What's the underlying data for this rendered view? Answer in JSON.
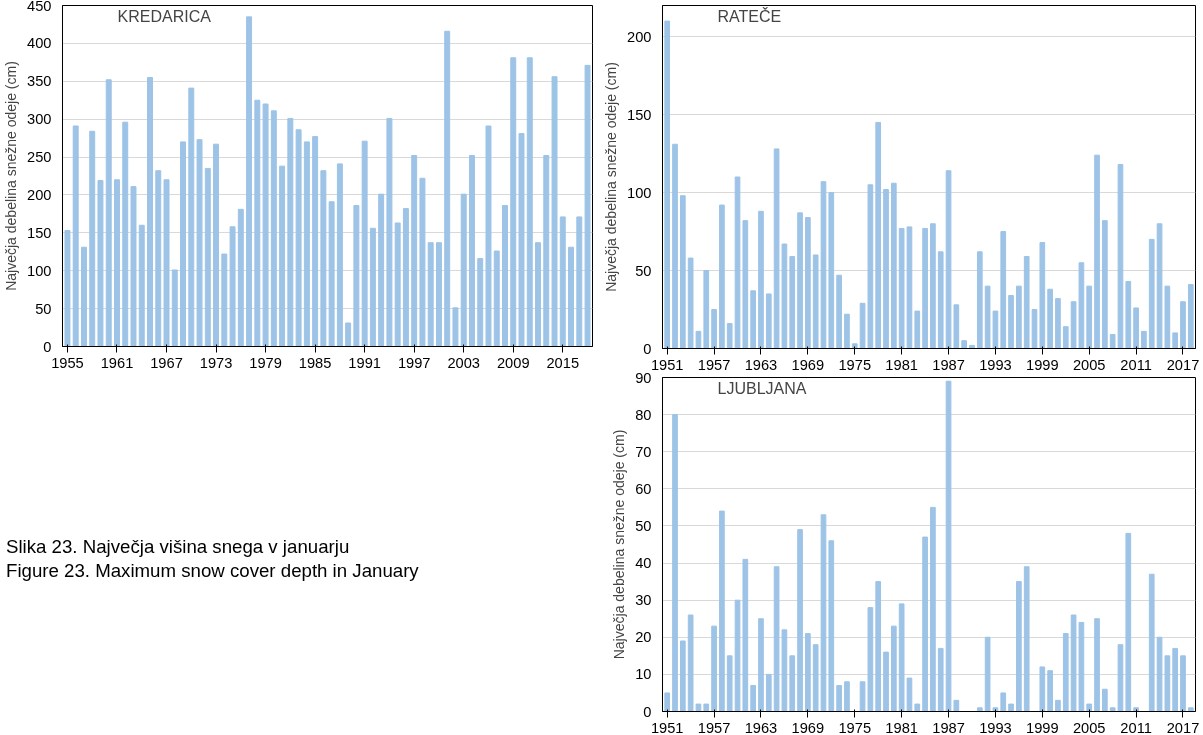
{
  "chart_data": [
    {
      "type": "bar",
      "title": "KREDARICA",
      "ylabel": "Največja debelina snežne odeje (cm)",
      "color": "#9dc3e6",
      "x": [
        1955,
        1956,
        1957,
        1958,
        1959,
        1960,
        1961,
        1962,
        1963,
        1964,
        1965,
        1966,
        1967,
        1968,
        1969,
        1970,
        1971,
        1972,
        1973,
        1974,
        1975,
        1976,
        1977,
        1978,
        1979,
        1980,
        1981,
        1982,
        1983,
        1984,
        1985,
        1986,
        1987,
        1988,
        1989,
        1990,
        1991,
        1992,
        1993,
        1994,
        1995,
        1996,
        1997,
        1998,
        1999,
        2000,
        2001,
        2002,
        2003,
        2004,
        2005,
        2006,
        2007,
        2008,
        2009,
        2010,
        2011,
        2012,
        2013,
        2014,
        2015,
        2016,
        2017,
        2018
      ],
      "values": [
        153,
        291,
        131,
        284,
        219,
        352,
        220,
        296,
        211,
        160,
        355,
        232,
        220,
        101,
        270,
        341,
        273,
        235,
        267,
        122,
        158,
        181,
        435,
        325,
        320,
        311,
        238,
        301,
        286,
        270,
        277,
        232,
        191,
        241,
        31,
        186,
        271,
        156,
        201,
        301,
        163,
        182,
        252,
        222,
        137,
        137,
        416,
        51,
        201,
        252,
        116,
        291,
        126,
        186,
        381,
        281,
        381,
        137,
        252,
        356,
        171,
        131,
        171,
        371
      ],
      "xlim": [
        1954.4,
        2018.6
      ],
      "xticks": [
        1955,
        1961,
        1967,
        1973,
        1979,
        1985,
        1991,
        1997,
        2003,
        2009,
        2015
      ],
      "ylim": [
        0,
        450
      ],
      "yticks": [
        0,
        50,
        100,
        150,
        200,
        250,
        300,
        350,
        400,
        450
      ],
      "grid": "y",
      "annotations": [
        "Slika 23. Največja višina snega v januarju",
        "Figure 23. Maximum snow cover depth in January"
      ]
    },
    {
      "type": "bar",
      "title": "RATEČE",
      "ylabel": "Največja debelina snežne odeje (cm)",
      "color": "#9dc3e6",
      "x": [
        1951,
        1952,
        1953,
        1954,
        1955,
        1956,
        1957,
        1958,
        1959,
        1960,
        1961,
        1962,
        1963,
        1964,
        1965,
        1966,
        1967,
        1968,
        1969,
        1970,
        1971,
        1972,
        1973,
        1974,
        1975,
        1976,
        1977,
        1978,
        1979,
        1980,
        1981,
        1982,
        1983,
        1984,
        1985,
        1986,
        1987,
        1988,
        1989,
        1990,
        1991,
        1992,
        1993,
        1994,
        1995,
        1996,
        1997,
        1998,
        1999,
        2000,
        2001,
        2002,
        2003,
        2004,
        2005,
        2006,
        2007,
        2008,
        2009,
        2010,
        2011,
        2012,
        2013,
        2014,
        2015,
        2016,
        2017,
        2018
      ],
      "values": [
        210,
        131,
        98,
        58,
        11,
        50,
        25,
        92,
        16,
        110,
        82,
        37,
        88,
        35,
        128,
        67,
        59,
        87,
        84,
        60,
        107,
        100,
        47,
        22,
        3,
        29,
        105,
        145,
        102,
        106,
        77,
        78,
        24,
        77,
        80,
        62,
        114,
        28,
        5,
        2,
        62,
        40,
        24,
        75,
        34,
        40,
        59,
        25,
        68,
        38,
        32,
        14,
        30,
        55,
        40,
        124,
        82,
        9,
        118,
        43,
        26,
        11,
        70,
        80,
        40,
        10,
        30,
        41
      ],
      "xlim": [
        1950.4,
        2018.6
      ],
      "xticks": [
        1951,
        1957,
        1963,
        1969,
        1975,
        1981,
        1987,
        1993,
        1999,
        2005,
        2011,
        2017
      ],
      "ylim": [
        0,
        220
      ],
      "yticks": [
        0,
        50,
        100,
        150,
        200
      ],
      "grid": "y"
    },
    {
      "type": "bar",
      "title": "LJUBLJANA",
      "ylabel": "Največja debelina snežne odeje (cm)",
      "color": "#9dc3e6",
      "x": [
        1951,
        1952,
        1953,
        1954,
        1955,
        1956,
        1957,
        1958,
        1959,
        1960,
        1961,
        1962,
        1963,
        1964,
        1965,
        1966,
        1967,
        1968,
        1969,
        1970,
        1971,
        1972,
        1973,
        1974,
        1975,
        1976,
        1977,
        1978,
        1979,
        1980,
        1981,
        1982,
        1983,
        1984,
        1985,
        1986,
        1987,
        1988,
        1989,
        1990,
        1991,
        1992,
        1993,
        1994,
        1995,
        1996,
        1997,
        1998,
        1999,
        2000,
        2001,
        2002,
        2003,
        2004,
        2005,
        2006,
        2007,
        2008,
        2009,
        2010,
        2011,
        2012,
        2013,
        2014,
        2015,
        2016,
        2017,
        2018
      ],
      "values": [
        5,
        80,
        19,
        26,
        2,
        2,
        23,
        54,
        15,
        30,
        41,
        7,
        25,
        10,
        39,
        22,
        15,
        49,
        21,
        18,
        53,
        46,
        7,
        8,
        0,
        8,
        28,
        35,
        16,
        23,
        29,
        9,
        2,
        47,
        55,
        17,
        89,
        3,
        0,
        0,
        1,
        20,
        1,
        5,
        2,
        35,
        39,
        0,
        12,
        11,
        3,
        21,
        26,
        24,
        2,
        25,
        6,
        1,
        18,
        48,
        1,
        0,
        37,
        20,
        15,
        17,
        15,
        1
      ],
      "xlim": [
        1950.4,
        2018.6
      ],
      "xticks": [
        1951,
        1957,
        1963,
        1969,
        1975,
        1981,
        1987,
        1993,
        1999,
        2005,
        2011,
        2017
      ],
      "ylim": [
        0,
        90
      ],
      "yticks": [
        0,
        10,
        20,
        30,
        40,
        50,
        60,
        70,
        80,
        90
      ],
      "grid": "y"
    }
  ]
}
